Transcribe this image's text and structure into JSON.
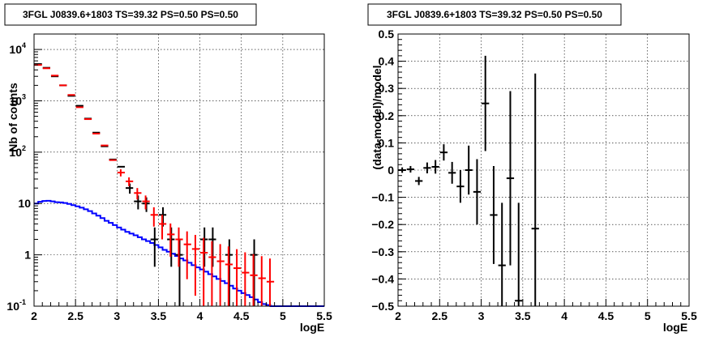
{
  "colors": {
    "data": "#000000",
    "model": "#ff0000",
    "background": "#0000ff"
  },
  "chart_data": [
    {
      "type": "line",
      "title": "3FGL J0839.6+1803 TS=39.32 PS=0.50 PS=0.50",
      "xlabel": "logE",
      "ylabel": "Nb of counts",
      "xlim": [
        2,
        5.5
      ],
      "ylim": [
        0.1,
        20000
      ],
      "yscale": "log",
      "grid": true,
      "x_ticks": [
        "2",
        "2.5",
        "3",
        "3.5",
        "4",
        "4.5",
        "5",
        "5.5"
      ],
      "y_ticks": [
        {
          "value": 0.1,
          "label": "10",
          "exp": "-1"
        },
        {
          "value": 1,
          "label": "1",
          "exp": ""
        },
        {
          "value": 10,
          "label": "10",
          "exp": ""
        },
        {
          "value": 100,
          "label": "10",
          "exp": "2"
        },
        {
          "value": 1000,
          "label": "10",
          "exp": "3"
        },
        {
          "value": 10000,
          "label": "10",
          "exp": "4"
        }
      ],
      "series": [
        {
          "role": "data",
          "color": "#000000",
          "points": [
            {
              "x": 2.05,
              "y": 5200
            },
            {
              "x": 2.15,
              "y": 4400
            },
            {
              "x": 2.25,
              "y": 3000
            },
            {
              "x": 2.35,
              "y": 2000
            },
            {
              "x": 2.45,
              "y": 1250
            },
            {
              "x": 2.55,
              "y": 800
            },
            {
              "x": 2.65,
              "y": 450
            },
            {
              "x": 2.75,
              "y": 240
            },
            {
              "x": 2.85,
              "y": 130
            },
            {
              "x": 2.95,
              "y": 72
            },
            {
              "x": 3.05,
              "y": 52
            },
            {
              "x": 3.15,
              "y": 20
            },
            {
              "x": 3.25,
              "y": 11
            },
            {
              "x": 3.35,
              "y": 10
            },
            {
              "x": 3.45,
              "y": 2
            },
            {
              "x": 3.55,
              "y": 6
            },
            {
              "x": 3.65,
              "y": 2
            },
            {
              "x": 3.75,
              "y": 1
            },
            {
              "x": 4.05,
              "y": 2
            },
            {
              "x": 4.15,
              "y": 2
            },
            {
              "x": 4.35,
              "y": 1
            },
            {
              "x": 4.65,
              "y": 1
            }
          ]
        },
        {
          "role": "model",
          "color": "#ff0000",
          "points": [
            {
              "x": 2.05,
              "y": 5000
            },
            {
              "x": 2.15,
              "y": 4300
            },
            {
              "x": 2.25,
              "y": 3100
            },
            {
              "x": 2.35,
              "y": 2000
            },
            {
              "x": 2.45,
              "y": 1300
            },
            {
              "x": 2.55,
              "y": 750
            },
            {
              "x": 2.65,
              "y": 440
            },
            {
              "x": 2.75,
              "y": 230
            },
            {
              "x": 2.85,
              "y": 135
            },
            {
              "x": 2.95,
              "y": 70
            },
            {
              "x": 3.05,
              "y": 40
            },
            {
              "x": 3.15,
              "y": 27
            },
            {
              "x": 3.25,
              "y": 16
            },
            {
              "x": 3.35,
              "y": 11
            },
            {
              "x": 3.45,
              "y": 6
            },
            {
              "x": 3.55,
              "y": 4
            },
            {
              "x": 3.65,
              "y": 2.5
            },
            {
              "x": 3.75,
              "y": 2
            },
            {
              "x": 3.85,
              "y": 1.6
            },
            {
              "x": 3.95,
              "y": 1.3
            },
            {
              "x": 4.05,
              "y": 1.1
            },
            {
              "x": 4.15,
              "y": 0.9
            },
            {
              "x": 4.25,
              "y": 0.75
            },
            {
              "x": 4.35,
              "y": 0.65
            },
            {
              "x": 4.45,
              "y": 0.55
            },
            {
              "x": 4.55,
              "y": 0.45
            },
            {
              "x": 4.65,
              "y": 0.4
            },
            {
              "x": 4.75,
              "y": 0.35
            },
            {
              "x": 4.85,
              "y": 0.3
            }
          ]
        },
        {
          "role": "background",
          "color": "#0000ff",
          "edges": [
            2.0,
            2.05,
            2.1,
            2.15,
            2.2,
            2.25,
            2.3,
            2.35,
            2.4,
            2.45,
            2.5,
            2.55,
            2.6,
            2.65,
            2.7,
            2.75,
            2.8,
            2.85,
            2.9,
            2.95,
            3.0,
            3.05,
            3.1,
            3.15,
            3.2,
            3.25,
            3.3,
            3.35,
            3.4,
            3.45,
            3.5,
            3.55,
            3.6,
            3.65,
            3.7,
            3.75,
            3.8,
            3.85,
            3.9,
            3.95,
            4.0,
            4.05,
            4.1,
            4.15,
            4.2,
            4.25,
            4.3,
            4.35,
            4.4,
            4.45,
            4.5,
            4.55,
            4.6,
            4.65,
            4.7,
            4.75,
            4.8,
            4.85,
            4.9,
            4.95,
            5.0,
            5.5
          ],
          "values": [
            10,
            10.8,
            11.2,
            11.3,
            11,
            10.6,
            10.5,
            10.2,
            9.8,
            9.3,
            8.8,
            8.3,
            7.7,
            7.1,
            6.4,
            5.8,
            5.2,
            4.6,
            4.2,
            3.8,
            3.4,
            3.1,
            2.8,
            2.6,
            2.4,
            2.2,
            2.0,
            1.85,
            1.7,
            1.55,
            1.4,
            1.25,
            1.15,
            1.05,
            0.95,
            0.85,
            0.78,
            0.7,
            0.63,
            0.57,
            0.52,
            0.47,
            0.42,
            0.38,
            0.34,
            0.31,
            0.28,
            0.25,
            0.22,
            0.2,
            0.18,
            0.165,
            0.15,
            0.135,
            0.12,
            0.11,
            0.105,
            0.1,
            0.1,
            0.1,
            0.1
          ]
        }
      ]
    },
    {
      "type": "scatter",
      "title": "3FGL J0839.6+1803 TS=39.32 PS=0.50 PS=0.50",
      "xlabel": "logE",
      "ylabel": "(data-model)/model",
      "xlim": [
        2,
        5.5
      ],
      "ylim": [
        -0.5,
        0.5
      ],
      "grid": true,
      "x_ticks": [
        "2",
        "2.5",
        "3",
        "3.5",
        "4",
        "4.5",
        "5",
        "5.5"
      ],
      "y_ticks": [
        "0.5",
        "0.4",
        "0.3",
        "0.2",
        "0.1",
        "0",
        "−0.1",
        "−0.2",
        "−0.3",
        "−0.4",
        "−0.5"
      ],
      "series": [
        {
          "role": "residual",
          "color": "#000000",
          "points": [
            {
              "x": 2.05,
              "y": 0.0,
              "err": 0.01
            },
            {
              "x": 2.15,
              "y": 0.003,
              "err": 0.012
            },
            {
              "x": 2.25,
              "y": -0.04,
              "err": 0.015
            },
            {
              "x": 2.35,
              "y": 0.008,
              "err": 0.02
            },
            {
              "x": 2.45,
              "y": 0.012,
              "err": 0.025
            },
            {
              "x": 2.55,
              "y": 0.065,
              "err": 0.03
            },
            {
              "x": 2.65,
              "y": -0.01,
              "err": 0.04
            },
            {
              "x": 2.75,
              "y": -0.06,
              "err": 0.06
            },
            {
              "x": 2.85,
              "y": 0.0,
              "err": 0.09
            },
            {
              "x": 2.95,
              "y": -0.08,
              "err": 0.12
            },
            {
              "x": 3.05,
              "y": 0.245,
              "err": 0.175
            },
            {
              "x": 3.15,
              "y": -0.165,
              "err": 0.18
            },
            {
              "x": 3.25,
              "y": -0.35,
              "err": 0.23
            },
            {
              "x": 3.35,
              "y": -0.03,
              "err": 0.32
            },
            {
              "x": 3.45,
              "y": -0.48,
              "err": 0.36
            },
            {
              "x": 3.65,
              "y": -0.215,
              "err": 0.57
            }
          ]
        }
      ]
    }
  ]
}
